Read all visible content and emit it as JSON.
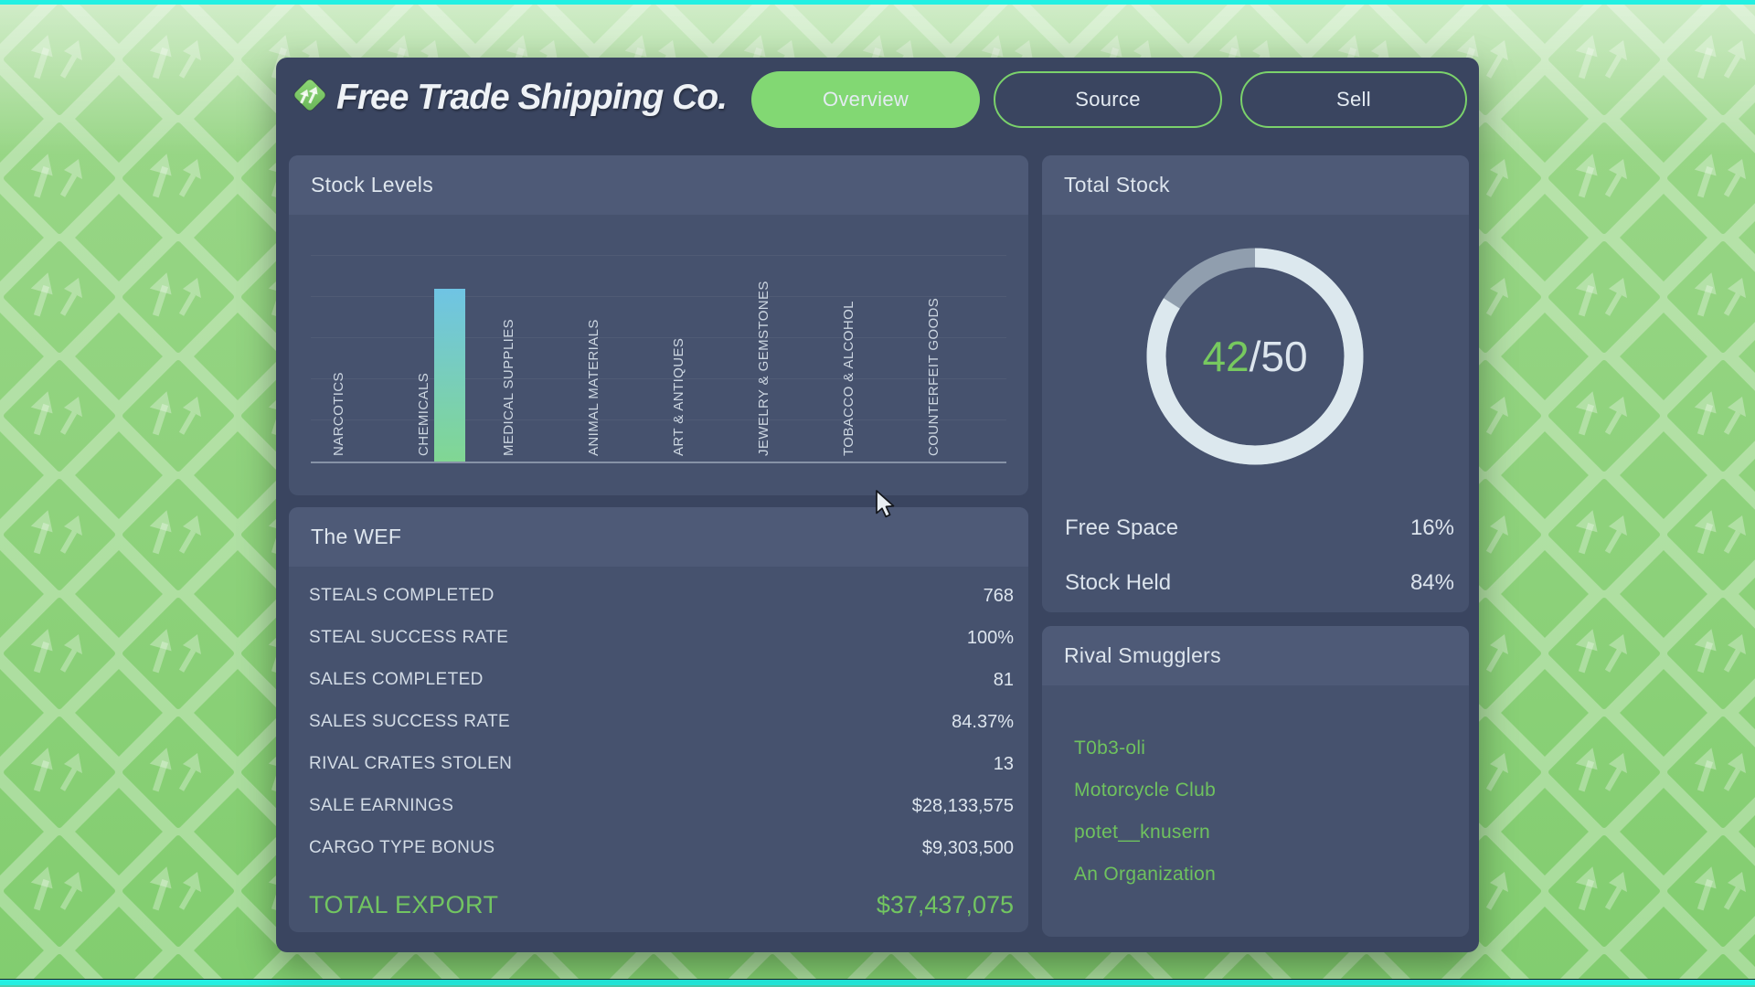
{
  "header": {
    "brand": "Free Trade Shipping Co.",
    "tabs": [
      {
        "label": "Overview",
        "active": true
      },
      {
        "label": "Source",
        "active": false
      },
      {
        "label": "Sell",
        "active": false
      }
    ]
  },
  "stock_levels_panel": {
    "title": "Stock Levels"
  },
  "chart_data": {
    "type": "bar",
    "title": "Stock Levels",
    "categories": [
      "NARCOTICS",
      "CHEMICALS",
      "MEDICAL SUPPLIES",
      "ANIMAL MATERIALS",
      "ART & ANTIQUES",
      "JEWELRY & GEMSTONES",
      "TOBACCO & ALCOHOL",
      "COUNTERFEIT GOODS"
    ],
    "values": [
      0,
      42,
      0,
      0,
      0,
      0,
      0,
      0
    ],
    "xlabel": "",
    "ylabel": "",
    "ylim": [
      0,
      50
    ],
    "gridline_step": 10,
    "grid": "faint horizontal gridlines, baseline axis only",
    "legend": "none",
    "bar_gradient_top": "#6fc4e4",
    "bar_gradient_bottom": "#81d793"
  },
  "wef_panel": {
    "title": "The WEF",
    "rows": [
      {
        "label": "STEALS COMPLETED",
        "value": "768"
      },
      {
        "label": "STEAL SUCCESS RATE",
        "value": "100%"
      },
      {
        "label": "SALES COMPLETED",
        "value": "81"
      },
      {
        "label": "SALES SUCCESS RATE",
        "value": "84.37%"
      },
      {
        "label": "RIVAL CRATES STOLEN",
        "value": "13"
      },
      {
        "label": "SALE EARNINGS",
        "value": "$28,133,575"
      },
      {
        "label": "CARGO TYPE BONUS",
        "value": "$9,303,500"
      }
    ],
    "total": {
      "label": "TOTAL EXPORT",
      "value": "$37,437,075"
    }
  },
  "total_stock_panel": {
    "title": "Total Stock",
    "current": "42",
    "separator": "/",
    "capacity": "50",
    "fill_percent": 84,
    "rows": [
      {
        "label": "Free Space",
        "value": "16%"
      },
      {
        "label": "Stock Held",
        "value": "84%"
      }
    ]
  },
  "rivals_panel": {
    "title": "Rival Smugglers",
    "items": [
      "T0b3-oli",
      "Motorcycle Club",
      "potet__knusern",
      "An Organization"
    ]
  },
  "colors": {
    "accent_green": "#72c561",
    "list_green": "#6fc25e",
    "tab_fill_green": "#82d873",
    "pill_border_green": "#7bd26b",
    "window_bg": "#3a4560",
    "panel_bg": "#46526e",
    "panel_header_bg": "#4e5a77",
    "ring_color": "#dce8ee",
    "edge_cyan": "#23f0e2",
    "background_green": "#87cf74"
  }
}
